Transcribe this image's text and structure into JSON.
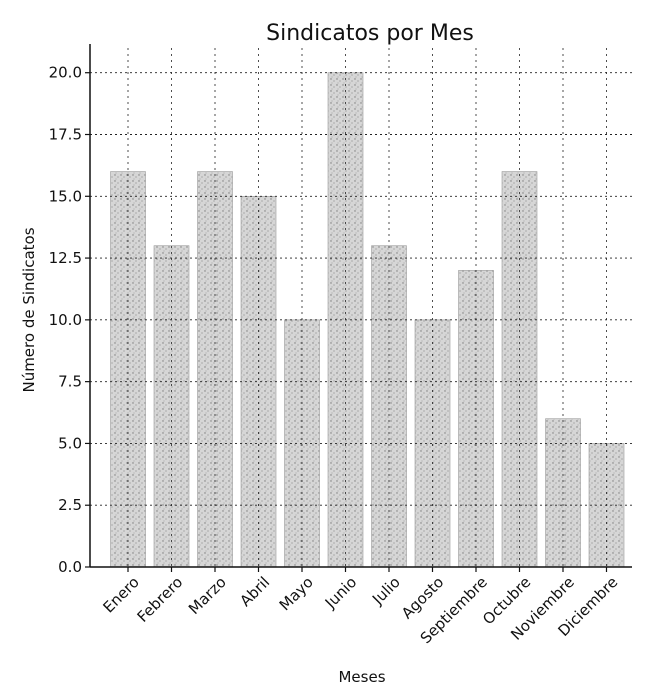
{
  "chart_data": {
    "type": "bar",
    "title": "Sindicatos por Mes",
    "xlabel": "Meses",
    "ylabel": "Número de Sindicatos",
    "categories": [
      "Enero",
      "Febrero",
      "Marzo",
      "Abril",
      "Mayo",
      "Junio",
      "Julio",
      "Agosto",
      "Septiembre",
      "Octubre",
      "Noviembre",
      "Diciembre"
    ],
    "values": [
      16,
      13,
      16,
      15,
      10,
      20,
      13,
      10,
      12,
      16,
      6,
      5
    ],
    "ylim": [
      0,
      21
    ],
    "yticks": [
      0.0,
      2.5,
      5.0,
      7.5,
      10.0,
      12.5,
      15.0,
      17.5,
      20.0
    ],
    "ytick_labels": [
      "0.0",
      "2.5",
      "5.0",
      "7.5",
      "10.0",
      "12.5",
      "15.0",
      "17.5",
      "20.0"
    ],
    "grid": true,
    "bar_color": "#bdbdbd",
    "grid_color": "#222222"
  }
}
